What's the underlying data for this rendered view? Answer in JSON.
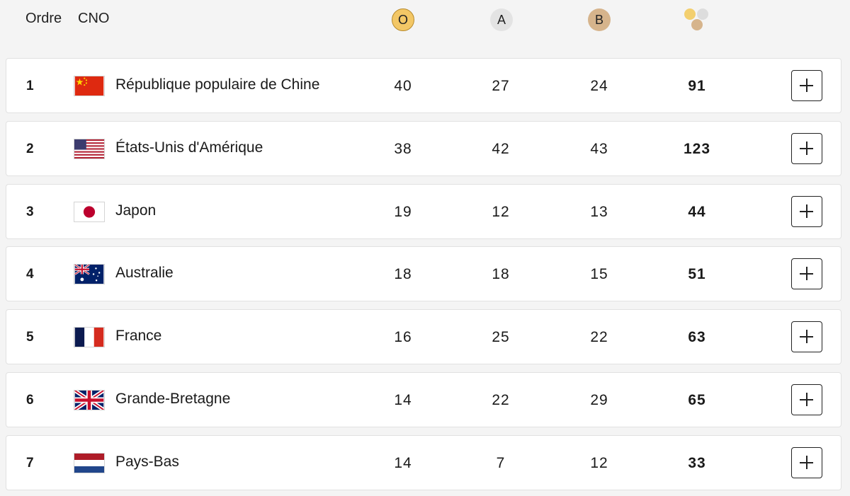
{
  "header": {
    "rank_label": "Ordre",
    "noc_label": "CNO",
    "gold_label": "O",
    "silver_label": "A",
    "bronze_label": "B",
    "total_icon": "medals-total-icon"
  },
  "colors": {
    "gold": "#f3c766",
    "silver": "#e3e3e3",
    "bronze": "#d6b48c"
  },
  "rows": [
    {
      "rank": "1",
      "flag": "china-flag-icon",
      "country": "République populaire de Chine",
      "gold": "40",
      "silver": "27",
      "bronze": "24",
      "total": "91"
    },
    {
      "rank": "2",
      "flag": "usa-flag-icon",
      "country": "États-Unis d'Amérique",
      "gold": "38",
      "silver": "42",
      "bronze": "43",
      "total": "123"
    },
    {
      "rank": "3",
      "flag": "japan-flag-icon",
      "country": "Japon",
      "gold": "19",
      "silver": "12",
      "bronze": "13",
      "total": "44"
    },
    {
      "rank": "4",
      "flag": "australia-flag-icon",
      "country": "Australie",
      "gold": "18",
      "silver": "18",
      "bronze": "15",
      "total": "51"
    },
    {
      "rank": "5",
      "flag": "france-flag-icon",
      "country": "France",
      "gold": "16",
      "silver": "25",
      "bronze": "22",
      "total": "63"
    },
    {
      "rank": "6",
      "flag": "great-britain-flag-icon",
      "country": "Grande-Bretagne",
      "gold": "14",
      "silver": "22",
      "bronze": "29",
      "total": "65"
    },
    {
      "rank": "7",
      "flag": "netherlands-flag-icon",
      "country": "Pays-Bas",
      "gold": "14",
      "silver": "7",
      "bronze": "12",
      "total": "33"
    }
  ]
}
